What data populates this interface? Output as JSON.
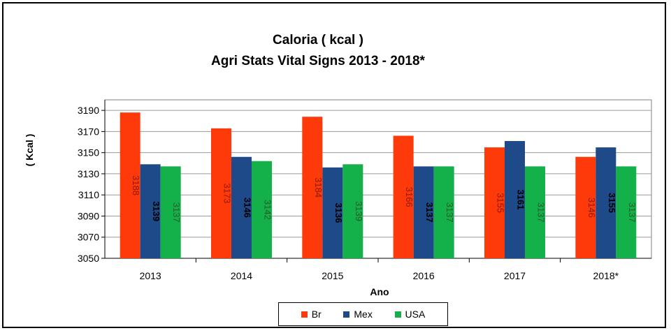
{
  "chart_data": {
    "type": "bar",
    "title": "Caloria ( kcal )",
    "subtitle": "Agri Stats Vital Signs 2013 - 2018*",
    "xlabel": "Ano",
    "ylabel": "( Kcal )",
    "ylim": [
      3050,
      3200
    ],
    "yticks": [
      3050,
      3070,
      3090,
      3110,
      3130,
      3150,
      3170,
      3190
    ],
    "grid": "horizontal",
    "legend_position": "bottom",
    "categories": [
      "2013",
      "2014",
      "2015",
      "2016",
      "2017",
      "2018*"
    ],
    "series": [
      {
        "name": "Br",
        "color": "#ff3a0a",
        "label_color": "#8b1a00",
        "label_bold": false,
        "values": [
          3188,
          3173,
          3184,
          3166,
          3155,
          3146
        ]
      },
      {
        "name": "Mex",
        "color": "#1f4a8a",
        "label_color": "#000000",
        "label_bold": true,
        "values": [
          3139,
          3146,
          3136,
          3137,
          3161,
          3155
        ]
      },
      {
        "name": "USA",
        "color": "#14b04a",
        "label_color": "#2a5a2a",
        "label_bold": false,
        "values": [
          3137,
          3142,
          3139,
          3137,
          3137,
          3137
        ]
      }
    ],
    "data_labels": [
      [
        "3188",
        "3139",
        "3137"
      ],
      [
        "3173",
        "3146",
        "3142"
      ],
      [
        "3184",
        "3136",
        "3139"
      ],
      [
        "3166",
        "3137",
        "3137"
      ],
      [
        "3155",
        "3161",
        "3137"
      ],
      [
        "3146",
        "3155",
        "3137"
      ]
    ]
  }
}
